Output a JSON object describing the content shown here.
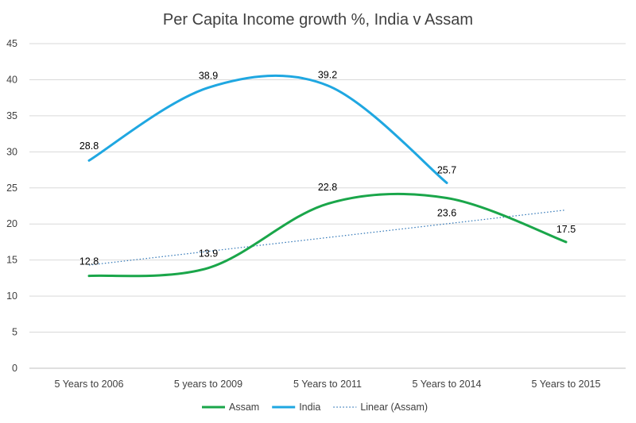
{
  "chart_data": {
    "type": "line",
    "title": "Per Capita Income growth %, India v Assam",
    "categories": [
      "5 Years to 2006",
      "5 years to 2009",
      "5 Years to 2011",
      "5 Years to 2014",
      "5 Years to 2015"
    ],
    "ylim": [
      0,
      45
    ],
    "yticks": [
      0,
      5,
      10,
      15,
      20,
      25,
      30,
      35,
      40,
      45
    ],
    "grid": true,
    "legend_position": "bottom",
    "series": [
      {
        "name": "Assam",
        "values": [
          12.8,
          13.9,
          22.8,
          23.6,
          17.5
        ],
        "labels": [
          "12.8",
          "13.9",
          "22.8",
          "23.6",
          "17.5"
        ],
        "color": "#1aa64a",
        "smooth": true
      },
      {
        "name": "India",
        "values": [
          28.8,
          38.9,
          39.2,
          25.7,
          null
        ],
        "labels": [
          "28.8",
          "38.9",
          "39.2",
          "25.7",
          ""
        ],
        "color": "#1fa7e1",
        "smooth": true
      }
    ],
    "trendline": {
      "name": "Linear (Assam)",
      "of_series": "Assam",
      "type": "linear",
      "color": "#2e75b6",
      "style": "dotted"
    }
  }
}
